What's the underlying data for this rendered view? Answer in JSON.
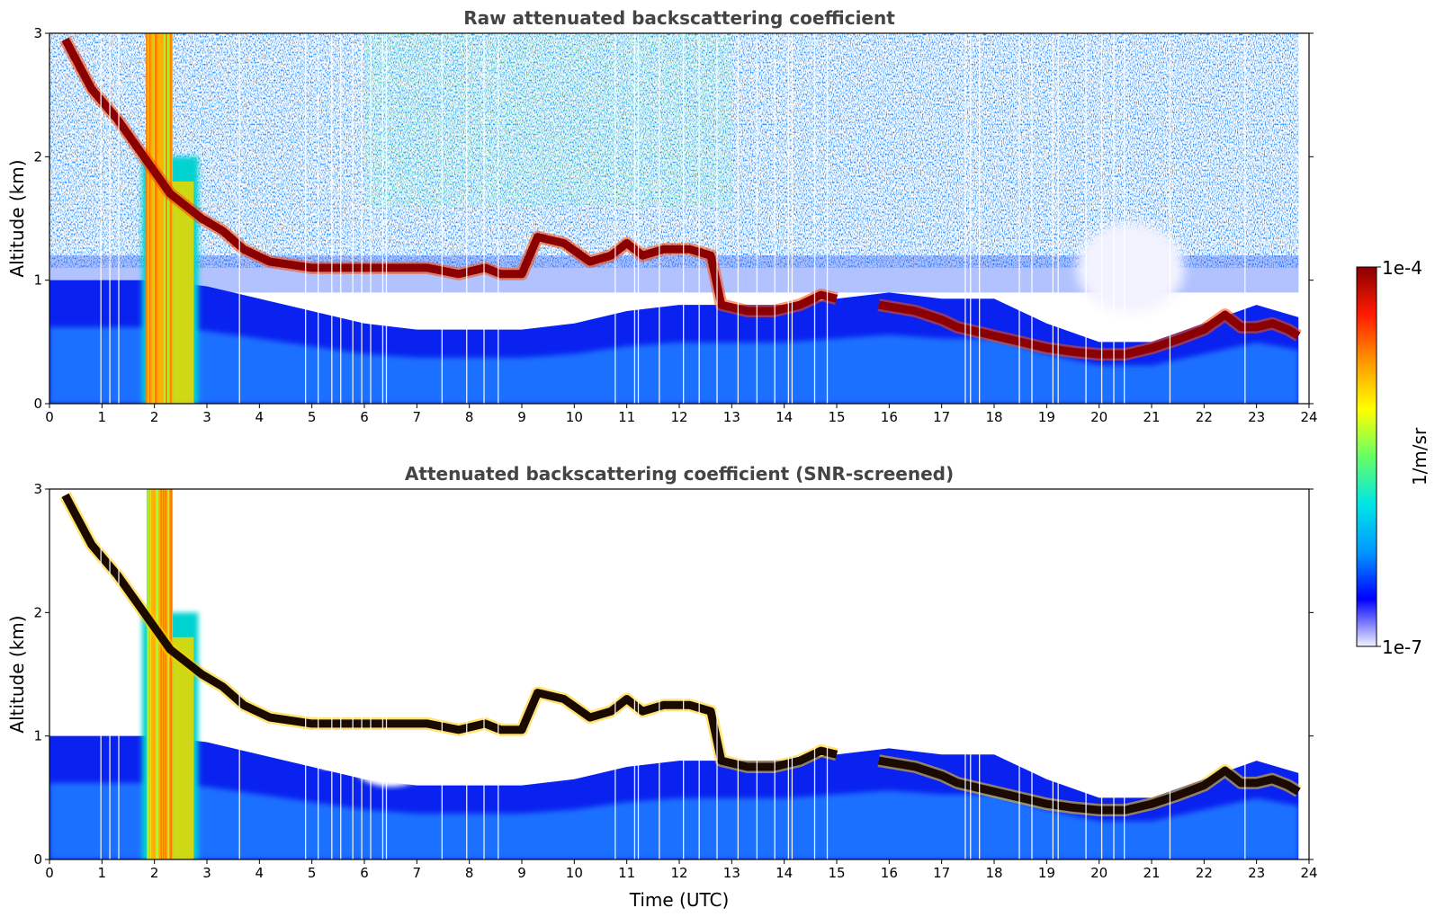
{
  "chart_data": [
    {
      "type": "heatmap",
      "title": "Raw attenuated backscattering coefficient",
      "xlabel": "",
      "ylabel": "Altitude (km)",
      "xlim": [
        0,
        24
      ],
      "ylim": [
        0,
        3
      ],
      "x_ticks": [
        "0",
        "1",
        "2",
        "3",
        "4",
        "5",
        "6",
        "7",
        "8",
        "9",
        "10",
        "11",
        "12",
        "13",
        "14",
        "15",
        "16",
        "17",
        "18",
        "19",
        "20",
        "21",
        "22",
        "23",
        "24"
      ],
      "y_ticks": [
        "0",
        "1",
        "2",
        "3"
      ],
      "screened": false
    },
    {
      "type": "heatmap",
      "title": "Attenuated backscattering coefficient (SNR-screened)",
      "xlabel": "Time (UTC)",
      "ylabel": "Altitude (km)",
      "xlim": [
        0,
        24
      ],
      "ylim": [
        0,
        3
      ],
      "x_ticks": [
        "0",
        "1",
        "2",
        "3",
        "4",
        "5",
        "6",
        "7",
        "8",
        "9",
        "10",
        "11",
        "12",
        "13",
        "14",
        "15",
        "16",
        "17",
        "18",
        "19",
        "20",
        "21",
        "22",
        "23",
        "24"
      ],
      "y_ticks": [
        "0",
        "1",
        "2",
        "3"
      ],
      "screened": true
    }
  ],
  "colorbar": {
    "label": "1/m/sr",
    "max_label": "1e-4",
    "min_label": "1e-7",
    "scale": "log",
    "range": [
      1e-07,
      0.0001
    ],
    "colormap": [
      "#f2f2ff",
      "#0000ff",
      "#0099ff",
      "#00e5e5",
      "#66ff66",
      "#ffff00",
      "#ff9900",
      "#ff1a00",
      "#8b0000"
    ]
  },
  "cloud_layer": {
    "time_h": [
      0.3,
      0.8,
      1.3,
      1.8,
      2.3,
      2.9,
      3.3,
      3.7,
      4.2,
      5.0,
      5.8,
      6.5,
      7.2,
      7.8,
      8.3,
      8.6,
      9.0,
      9.3,
      9.8,
      10.3,
      10.7,
      11.0,
      11.3,
      11.7,
      12.2,
      12.6,
      12.8,
      13.3,
      13.8,
      14.3,
      14.7,
      15.0
    ],
    "altitude_km": [
      2.95,
      2.55,
      2.3,
      2.0,
      1.7,
      1.5,
      1.4,
      1.25,
      1.15,
      1.1,
      1.1,
      1.1,
      1.1,
      1.05,
      1.1,
      1.05,
      1.05,
      1.35,
      1.3,
      1.15,
      1.2,
      1.3,
      1.2,
      1.25,
      1.25,
      1.2,
      0.8,
      0.75,
      0.75,
      0.8,
      0.88,
      0.85
    ]
  },
  "low_cloud_layer": {
    "time_h": [
      15.8,
      16.5,
      17.0,
      17.3,
      19.0,
      19.5,
      20.0,
      20.5,
      21.0,
      21.5,
      22.0,
      22.4,
      22.7,
      23.0,
      23.3,
      23.6,
      23.8
    ],
    "altitude_km": [
      0.8,
      0.75,
      0.68,
      0.62,
      0.45,
      0.42,
      0.4,
      0.4,
      0.45,
      0.52,
      0.6,
      0.72,
      0.62,
      0.62,
      0.65,
      0.6,
      0.55
    ]
  },
  "precipitation_column": {
    "start_h": 1.85,
    "end_h": 2.35,
    "top_km": 3.0
  }
}
